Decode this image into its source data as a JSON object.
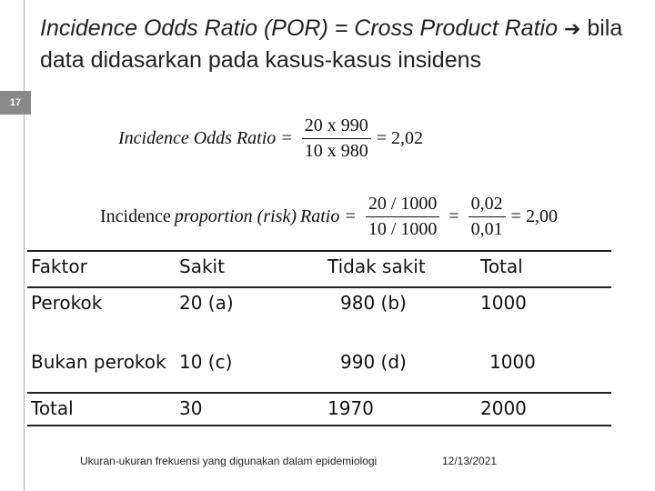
{
  "slide": {
    "number": "17",
    "title_italic": "Incidence Odds Ratio (POR) = Cross Product Ratio",
    "title_arrow": "➔",
    "title_rest": "bila data didasarkan pada kasus-kasus insidens"
  },
  "formula1": {
    "label": "Incidence Odds Ratio =",
    "numerator": "20 x 990",
    "denominator": "10 x 980",
    "result": "= 2,02"
  },
  "formula2": {
    "label_normal": "Incidence",
    "label_italic": "proportion (risk)",
    "ratio_word": "Ratio =",
    "num1": "20 / 1000",
    "den1": "10 / 1000",
    "eq": "=",
    "num2": "0,02",
    "den2": "0,01",
    "result": "= 2,00"
  },
  "table": {
    "headers": [
      "Faktor",
      "Sakit",
      "Tidak sakit",
      "Total"
    ],
    "rows": [
      [
        "Perokok",
        "20 (a)",
        "980 (b)",
        "1000"
      ],
      [
        "Bukan perokok",
        "10 (c)",
        "990 (d)",
        "1000"
      ],
      [
        "Total",
        "30",
        "1970",
        "2000"
      ]
    ]
  },
  "footer": {
    "caption": "Ukuran-ukuran frekuensi yang digunakan dalam epidemiologi",
    "date": "12/13/2021"
  }
}
